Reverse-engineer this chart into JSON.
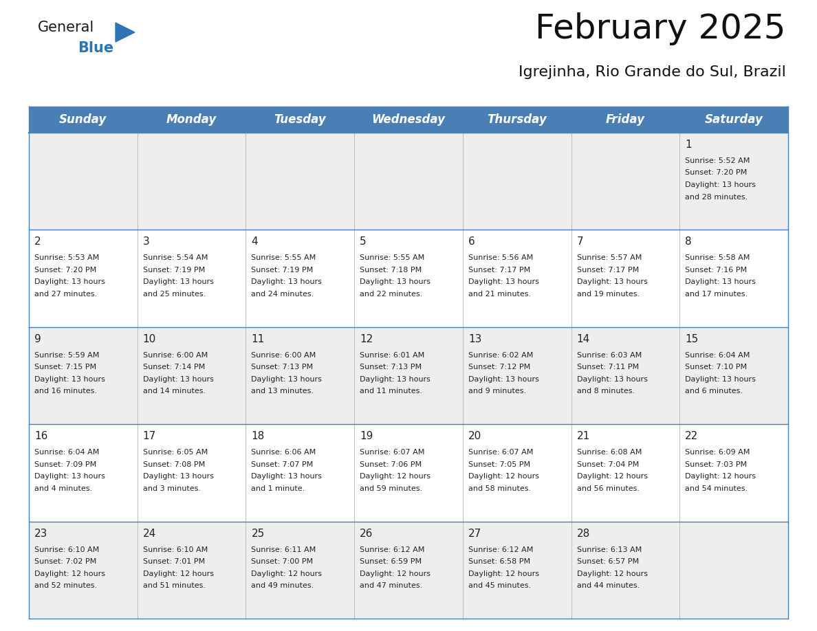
{
  "title": "February 2025",
  "subtitle": "Igrejinha, Rio Grande do Sul, Brazil",
  "header_bg": "#4a7fb5",
  "header_text": "#ffffff",
  "row_bg_odd": "#eeeeee",
  "row_bg_even": "#ffffff",
  "border_color": "#4a7fb5",
  "cell_border_color": "#4a7fb5",
  "text_color": "#222222",
  "days_of_week": [
    "Sunday",
    "Monday",
    "Tuesday",
    "Wednesday",
    "Thursday",
    "Friday",
    "Saturday"
  ],
  "weeks": [
    [
      {
        "day": "",
        "info": ""
      },
      {
        "day": "",
        "info": ""
      },
      {
        "day": "",
        "info": ""
      },
      {
        "day": "",
        "info": ""
      },
      {
        "day": "",
        "info": ""
      },
      {
        "day": "",
        "info": ""
      },
      {
        "day": "1",
        "info": "Sunrise: 5:52 AM\nSunset: 7:20 PM\nDaylight: 13 hours\nand 28 minutes."
      }
    ],
    [
      {
        "day": "2",
        "info": "Sunrise: 5:53 AM\nSunset: 7:20 PM\nDaylight: 13 hours\nand 27 minutes."
      },
      {
        "day": "3",
        "info": "Sunrise: 5:54 AM\nSunset: 7:19 PM\nDaylight: 13 hours\nand 25 minutes."
      },
      {
        "day": "4",
        "info": "Sunrise: 5:55 AM\nSunset: 7:19 PM\nDaylight: 13 hours\nand 24 minutes."
      },
      {
        "day": "5",
        "info": "Sunrise: 5:55 AM\nSunset: 7:18 PM\nDaylight: 13 hours\nand 22 minutes."
      },
      {
        "day": "6",
        "info": "Sunrise: 5:56 AM\nSunset: 7:17 PM\nDaylight: 13 hours\nand 21 minutes."
      },
      {
        "day": "7",
        "info": "Sunrise: 5:57 AM\nSunset: 7:17 PM\nDaylight: 13 hours\nand 19 minutes."
      },
      {
        "day": "8",
        "info": "Sunrise: 5:58 AM\nSunset: 7:16 PM\nDaylight: 13 hours\nand 17 minutes."
      }
    ],
    [
      {
        "day": "9",
        "info": "Sunrise: 5:59 AM\nSunset: 7:15 PM\nDaylight: 13 hours\nand 16 minutes."
      },
      {
        "day": "10",
        "info": "Sunrise: 6:00 AM\nSunset: 7:14 PM\nDaylight: 13 hours\nand 14 minutes."
      },
      {
        "day": "11",
        "info": "Sunrise: 6:00 AM\nSunset: 7:13 PM\nDaylight: 13 hours\nand 13 minutes."
      },
      {
        "day": "12",
        "info": "Sunrise: 6:01 AM\nSunset: 7:13 PM\nDaylight: 13 hours\nand 11 minutes."
      },
      {
        "day": "13",
        "info": "Sunrise: 6:02 AM\nSunset: 7:12 PM\nDaylight: 13 hours\nand 9 minutes."
      },
      {
        "day": "14",
        "info": "Sunrise: 6:03 AM\nSunset: 7:11 PM\nDaylight: 13 hours\nand 8 minutes."
      },
      {
        "day": "15",
        "info": "Sunrise: 6:04 AM\nSunset: 7:10 PM\nDaylight: 13 hours\nand 6 minutes."
      }
    ],
    [
      {
        "day": "16",
        "info": "Sunrise: 6:04 AM\nSunset: 7:09 PM\nDaylight: 13 hours\nand 4 minutes."
      },
      {
        "day": "17",
        "info": "Sunrise: 6:05 AM\nSunset: 7:08 PM\nDaylight: 13 hours\nand 3 minutes."
      },
      {
        "day": "18",
        "info": "Sunrise: 6:06 AM\nSunset: 7:07 PM\nDaylight: 13 hours\nand 1 minute."
      },
      {
        "day": "19",
        "info": "Sunrise: 6:07 AM\nSunset: 7:06 PM\nDaylight: 12 hours\nand 59 minutes."
      },
      {
        "day": "20",
        "info": "Sunrise: 6:07 AM\nSunset: 7:05 PM\nDaylight: 12 hours\nand 58 minutes."
      },
      {
        "day": "21",
        "info": "Sunrise: 6:08 AM\nSunset: 7:04 PM\nDaylight: 12 hours\nand 56 minutes."
      },
      {
        "day": "22",
        "info": "Sunrise: 6:09 AM\nSunset: 7:03 PM\nDaylight: 12 hours\nand 54 minutes."
      }
    ],
    [
      {
        "day": "23",
        "info": "Sunrise: 6:10 AM\nSunset: 7:02 PM\nDaylight: 12 hours\nand 52 minutes."
      },
      {
        "day": "24",
        "info": "Sunrise: 6:10 AM\nSunset: 7:01 PM\nDaylight: 12 hours\nand 51 minutes."
      },
      {
        "day": "25",
        "info": "Sunrise: 6:11 AM\nSunset: 7:00 PM\nDaylight: 12 hours\nand 49 minutes."
      },
      {
        "day": "26",
        "info": "Sunrise: 6:12 AM\nSunset: 6:59 PM\nDaylight: 12 hours\nand 47 minutes."
      },
      {
        "day": "27",
        "info": "Sunrise: 6:12 AM\nSunset: 6:58 PM\nDaylight: 12 hours\nand 45 minutes."
      },
      {
        "day": "28",
        "info": "Sunrise: 6:13 AM\nSunset: 6:57 PM\nDaylight: 12 hours\nand 44 minutes."
      },
      {
        "day": "",
        "info": ""
      }
    ]
  ],
  "logo_general_color": "#1a1a1a",
  "logo_blue_color": "#2e75b6",
  "logo_triangle_color": "#2e75b6",
  "title_fontsize": 36,
  "subtitle_fontsize": 16,
  "header_fontsize": 12,
  "day_num_fontsize": 11,
  "cell_text_fontsize": 8
}
